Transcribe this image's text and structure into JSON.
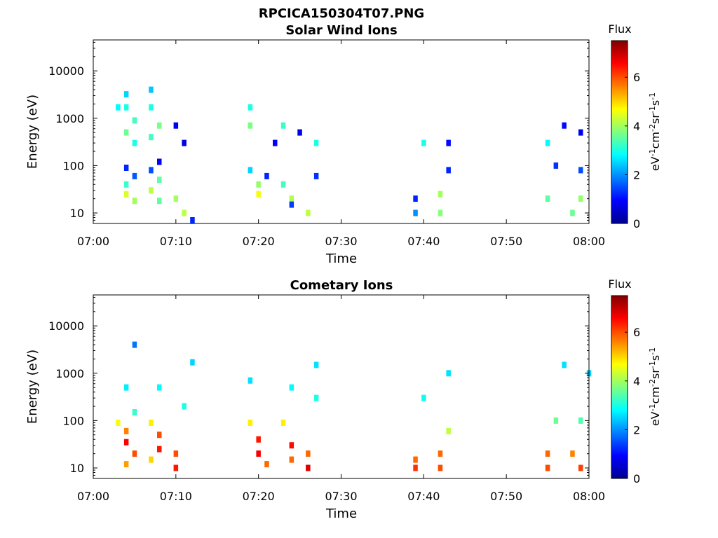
{
  "figure_title": "RPCICA150304T07.PNG",
  "colors": {
    "frame": "#000000",
    "background": "#ffffff",
    "colormap": [
      "#00008f",
      "#0000ff",
      "#0080ff",
      "#00ffff",
      "#80ff80",
      "#ffff00",
      "#ff8000",
      "#ff0000",
      "#800000"
    ]
  },
  "chart_data": [
    {
      "type": "heatmap",
      "title": "Solar Wind Ions",
      "xlabel": "Time",
      "ylabel": "Energy (eV)",
      "x_ticks": [
        "07:00",
        "07:10",
        "07:20",
        "07:30",
        "07:40",
        "07:50",
        "08:00"
      ],
      "xlim": [
        "07:00",
        "08:00"
      ],
      "y_scale": "log",
      "ylim": [
        6,
        45000
      ],
      "y_ticks": [
        {
          "value": 10,
          "label": "10"
        },
        {
          "value": 100,
          "label": "100"
        },
        {
          "value": 1000,
          "label": "1000"
        },
        {
          "value": 10000,
          "label": "10000"
        }
      ],
      "colorbar": {
        "label": "Flux",
        "unit": "eV-1cm-2sr-1s-1",
        "range": [
          0,
          7.5
        ],
        "ticks": [
          "0",
          "2",
          "4",
          "6"
        ]
      },
      "cells": [
        {
          "time": "07:03",
          "energy": 1700,
          "flux": 2.8
        },
        {
          "time": "07:04",
          "energy": 3200,
          "flux": 2.5
        },
        {
          "time": "07:04",
          "energy": 1700,
          "flux": 3.0
        },
        {
          "time": "07:05",
          "energy": 900,
          "flux": 3.3
        },
        {
          "time": "07:04",
          "energy": 500,
          "flux": 3.6
        },
        {
          "time": "07:05",
          "energy": 300,
          "flux": 3.0
        },
        {
          "time": "07:04",
          "energy": 90,
          "flux": 1.2
        },
        {
          "time": "07:05",
          "energy": 60,
          "flux": 1.6
        },
        {
          "time": "07:04",
          "energy": 40,
          "flux": 3.2
        },
        {
          "time": "07:04",
          "energy": 25,
          "flux": 4.4
        },
        {
          "time": "07:05",
          "energy": 18,
          "flux": 4.0
        },
        {
          "time": "07:07",
          "energy": 4000,
          "flux": 2.4
        },
        {
          "time": "07:07",
          "energy": 1700,
          "flux": 3.0
        },
        {
          "time": "07:08",
          "energy": 700,
          "flux": 3.7
        },
        {
          "time": "07:07",
          "energy": 400,
          "flux": 3.3
        },
        {
          "time": "07:08",
          "energy": 120,
          "flux": 0.9
        },
        {
          "time": "07:07",
          "energy": 80,
          "flux": 1.5
        },
        {
          "time": "07:08",
          "energy": 50,
          "flux": 3.5
        },
        {
          "time": "07:07",
          "energy": 30,
          "flux": 4.2
        },
        {
          "time": "07:08",
          "energy": 18,
          "flux": 3.5
        },
        {
          "time": "07:10",
          "energy": 700,
          "flux": 0.8
        },
        {
          "time": "07:10",
          "energy": 20,
          "flux": 4.0
        },
        {
          "time": "07:11",
          "energy": 300,
          "flux": 0.7
        },
        {
          "time": "07:11",
          "energy": 10,
          "flux": 4.2
        },
        {
          "time": "07:12",
          "energy": 7,
          "flux": 1.2
        },
        {
          "time": "07:19",
          "energy": 1700,
          "flux": 3.0
        },
        {
          "time": "07:19",
          "energy": 700,
          "flux": 3.7
        },
        {
          "time": "07:19",
          "energy": 80,
          "flux": 2.5
        },
        {
          "time": "07:20",
          "energy": 40,
          "flux": 3.9
        },
        {
          "time": "07:20",
          "energy": 25,
          "flux": 4.6
        },
        {
          "time": "07:21",
          "energy": 60,
          "flux": 1.2
        },
        {
          "time": "07:22",
          "energy": 300,
          "flux": 0.9
        },
        {
          "time": "07:23",
          "energy": 700,
          "flux": 3.2
        },
        {
          "time": "07:23",
          "energy": 40,
          "flux": 3.3
        },
        {
          "time": "07:24",
          "energy": 20,
          "flux": 4.1
        },
        {
          "time": "07:24",
          "energy": 15,
          "flux": 1.4
        },
        {
          "time": "07:25",
          "energy": 500,
          "flux": 0.7
        },
        {
          "time": "07:26",
          "energy": 10,
          "flux": 4.2
        },
        {
          "time": "07:27",
          "energy": 60,
          "flux": 1.3
        },
        {
          "time": "07:27",
          "energy": 300,
          "flux": 3.0
        },
        {
          "time": "07:39",
          "energy": 10,
          "flux": 2.0
        },
        {
          "time": "07:39",
          "energy": 20,
          "flux": 1.2
        },
        {
          "time": "07:40",
          "energy": 300,
          "flux": 3.0
        },
        {
          "time": "07:42",
          "energy": 10,
          "flux": 3.8
        },
        {
          "time": "07:42",
          "energy": 25,
          "flux": 4.0
        },
        {
          "time": "07:43",
          "energy": 300,
          "flux": 1.0
        },
        {
          "time": "07:43",
          "energy": 80,
          "flux": 1.2
        },
        {
          "time": "07:55",
          "energy": 300,
          "flux": 2.8
        },
        {
          "time": "07:55",
          "energy": 20,
          "flux": 3.5
        },
        {
          "time": "07:56",
          "energy": 100,
          "flux": 1.3
        },
        {
          "time": "07:57",
          "energy": 700,
          "flux": 1.0
        },
        {
          "time": "07:58",
          "energy": 10,
          "flux": 3.6
        },
        {
          "time": "07:59",
          "energy": 20,
          "flux": 3.9
        },
        {
          "time": "07:59",
          "energy": 500,
          "flux": 0.8
        },
        {
          "time": "07:59",
          "energy": 80,
          "flux": 1.5
        }
      ]
    },
    {
      "type": "heatmap",
      "title": "Cometary Ions",
      "xlabel": "Time",
      "ylabel": "Energy (eV)",
      "x_ticks": [
        "07:00",
        "07:10",
        "07:20",
        "07:30",
        "07:40",
        "07:50",
        "08:00"
      ],
      "xlim": [
        "07:00",
        "08:00"
      ],
      "y_scale": "log",
      "ylim": [
        6,
        45000
      ],
      "y_ticks": [
        {
          "value": 10,
          "label": "10"
        },
        {
          "value": 100,
          "label": "100"
        },
        {
          "value": 1000,
          "label": "1000"
        },
        {
          "value": 10000,
          "label": "10000"
        }
      ],
      "colorbar": {
        "label": "Flux",
        "unit": "eV-1cm-2sr-1s-1",
        "range": [
          0,
          7.5
        ],
        "ticks": [
          "0",
          "2",
          "4",
          "6"
        ]
      },
      "cells": [
        {
          "time": "07:03",
          "energy": 90,
          "flux": 4.6
        },
        {
          "time": "07:04",
          "energy": 60,
          "flux": 5.6
        },
        {
          "time": "07:04",
          "energy": 35,
          "flux": 6.6
        },
        {
          "time": "07:05",
          "energy": 20,
          "flux": 6.0
        },
        {
          "time": "07:04",
          "energy": 12,
          "flux": 5.4
        },
        {
          "time": "07:05",
          "energy": 150,
          "flux": 3.2
        },
        {
          "time": "07:04",
          "energy": 500,
          "flux": 2.7
        },
        {
          "time": "07:05",
          "energy": 4000,
          "flux": 1.8
        },
        {
          "time": "07:07",
          "energy": 90,
          "flux": 4.8
        },
        {
          "time": "07:08",
          "energy": 50,
          "flux": 6.0
        },
        {
          "time": "07:08",
          "energy": 25,
          "flux": 6.4
        },
        {
          "time": "07:07",
          "energy": 15,
          "flux": 5.0
        },
        {
          "time": "07:08",
          "energy": 500,
          "flux": 2.8
        },
        {
          "time": "07:10",
          "energy": 20,
          "flux": 6.0
        },
        {
          "time": "07:10",
          "energy": 10,
          "flux": 6.4
        },
        {
          "time": "07:11",
          "energy": 200,
          "flux": 3.0
        },
        {
          "time": "07:12",
          "energy": 1700,
          "flux": 2.5
        },
        {
          "time": "07:19",
          "energy": 90,
          "flux": 4.8
        },
        {
          "time": "07:20",
          "energy": 40,
          "flux": 6.4
        },
        {
          "time": "07:20",
          "energy": 20,
          "flux": 6.6
        },
        {
          "time": "07:21",
          "energy": 12,
          "flux": 5.8
        },
        {
          "time": "07:19",
          "energy": 700,
          "flux": 2.6
        },
        {
          "time": "07:23",
          "energy": 90,
          "flux": 4.8
        },
        {
          "time": "07:24",
          "energy": 30,
          "flux": 6.5
        },
        {
          "time": "07:24",
          "energy": 15,
          "flux": 5.8
        },
        {
          "time": "07:24",
          "energy": 500,
          "flux": 2.8
        },
        {
          "time": "07:26",
          "energy": 20,
          "flux": 5.8
        },
        {
          "time": "07:26",
          "energy": 10,
          "flux": 6.8
        },
        {
          "time": "07:27",
          "energy": 300,
          "flux": 3.0
        },
        {
          "time": "07:27",
          "energy": 1500,
          "flux": 2.6
        },
        {
          "time": "07:39",
          "energy": 15,
          "flux": 5.8
        },
        {
          "time": "07:39",
          "energy": 10,
          "flux": 6.2
        },
        {
          "time": "07:40",
          "energy": 300,
          "flux": 2.9
        },
        {
          "time": "07:42",
          "energy": 20,
          "flux": 5.8
        },
        {
          "time": "07:42",
          "energy": 10,
          "flux": 6.0
        },
        {
          "time": "07:43",
          "energy": 60,
          "flux": 4.2
        },
        {
          "time": "07:43",
          "energy": 1000,
          "flux": 2.6
        },
        {
          "time": "07:55",
          "energy": 20,
          "flux": 5.8
        },
        {
          "time": "07:55",
          "energy": 10,
          "flux": 6.0
        },
        {
          "time": "07:56",
          "energy": 100,
          "flux": 3.6
        },
        {
          "time": "07:57",
          "energy": 1500,
          "flux": 2.6
        },
        {
          "time": "07:58",
          "energy": 20,
          "flux": 5.6
        },
        {
          "time": "07:59",
          "energy": 10,
          "flux": 6.1
        },
        {
          "time": "07:59",
          "energy": 100,
          "flux": 3.4
        },
        {
          "time": "08:00",
          "energy": 1000,
          "flux": 2.5
        }
      ]
    }
  ]
}
